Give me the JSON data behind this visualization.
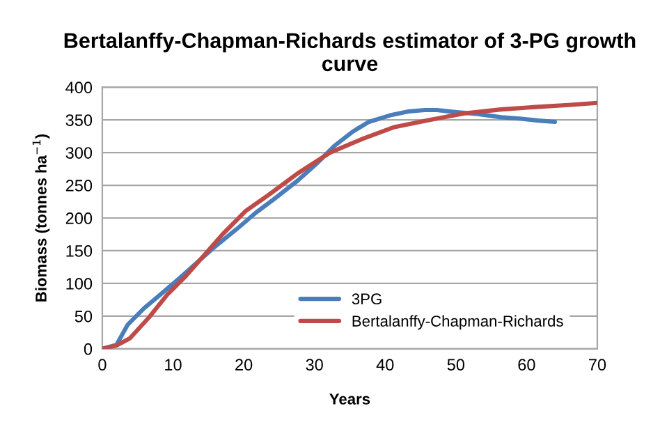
{
  "chart_data": {
    "type": "line",
    "title": "Bertalanffy-Chapman-Richards estimator of 3-PG growth curve",
    "xlabel": "Years",
    "ylabel": "Biomass (tonnes ha$^{−1}$)",
    "xlim": [
      0,
      70
    ],
    "xticks": [
      0,
      10,
      20,
      30,
      40,
      50,
      60,
      70
    ],
    "ylim": [
      0,
      400
    ],
    "yticks": [
      0,
      50,
      100,
      150,
      200,
      250,
      300,
      350,
      400
    ],
    "grid": "y",
    "legend": "bottom right",
    "line_style": "solid",
    "marker": "none",
    "series": [
      {
        "name": "3PG",
        "color": "#4a7ebb",
        "x": [
          0,
          2,
          3.6,
          5.9,
          7.9,
          10.5,
          13.5,
          15.7,
          19,
          21.7,
          24.3,
          27.6,
          30.2,
          32.8,
          35.4,
          37.7,
          40.7,
          43.3,
          45.6,
          47.3,
          49.9,
          53.1,
          56.4,
          59,
          61.7,
          64
        ],
        "values": [
          0,
          6,
          37,
          62,
          80,
          104,
          133,
          154,
          183,
          208,
          229,
          257,
          282,
          310,
          332,
          347,
          357,
          363,
          365,
          365,
          362,
          359,
          354,
          352,
          349,
          347
        ]
      },
      {
        "name": "Bertalanffy-Chapman-Richards",
        "color": "#be4b48",
        "x": [
          0,
          2,
          3.9,
          6.6,
          9.2,
          11.8,
          14.4,
          17,
          20.3,
          23.6,
          27.6,
          32.2,
          36.8,
          41.3,
          45.9,
          51.2,
          56.4,
          61.7,
          66.3,
          70
        ],
        "values": [
          0,
          5,
          16,
          48,
          83,
          111,
          143,
          175,
          211,
          236,
          268,
          300,
          321,
          339,
          349,
          360,
          366,
          370,
          373,
          376
        ]
      }
    ]
  }
}
